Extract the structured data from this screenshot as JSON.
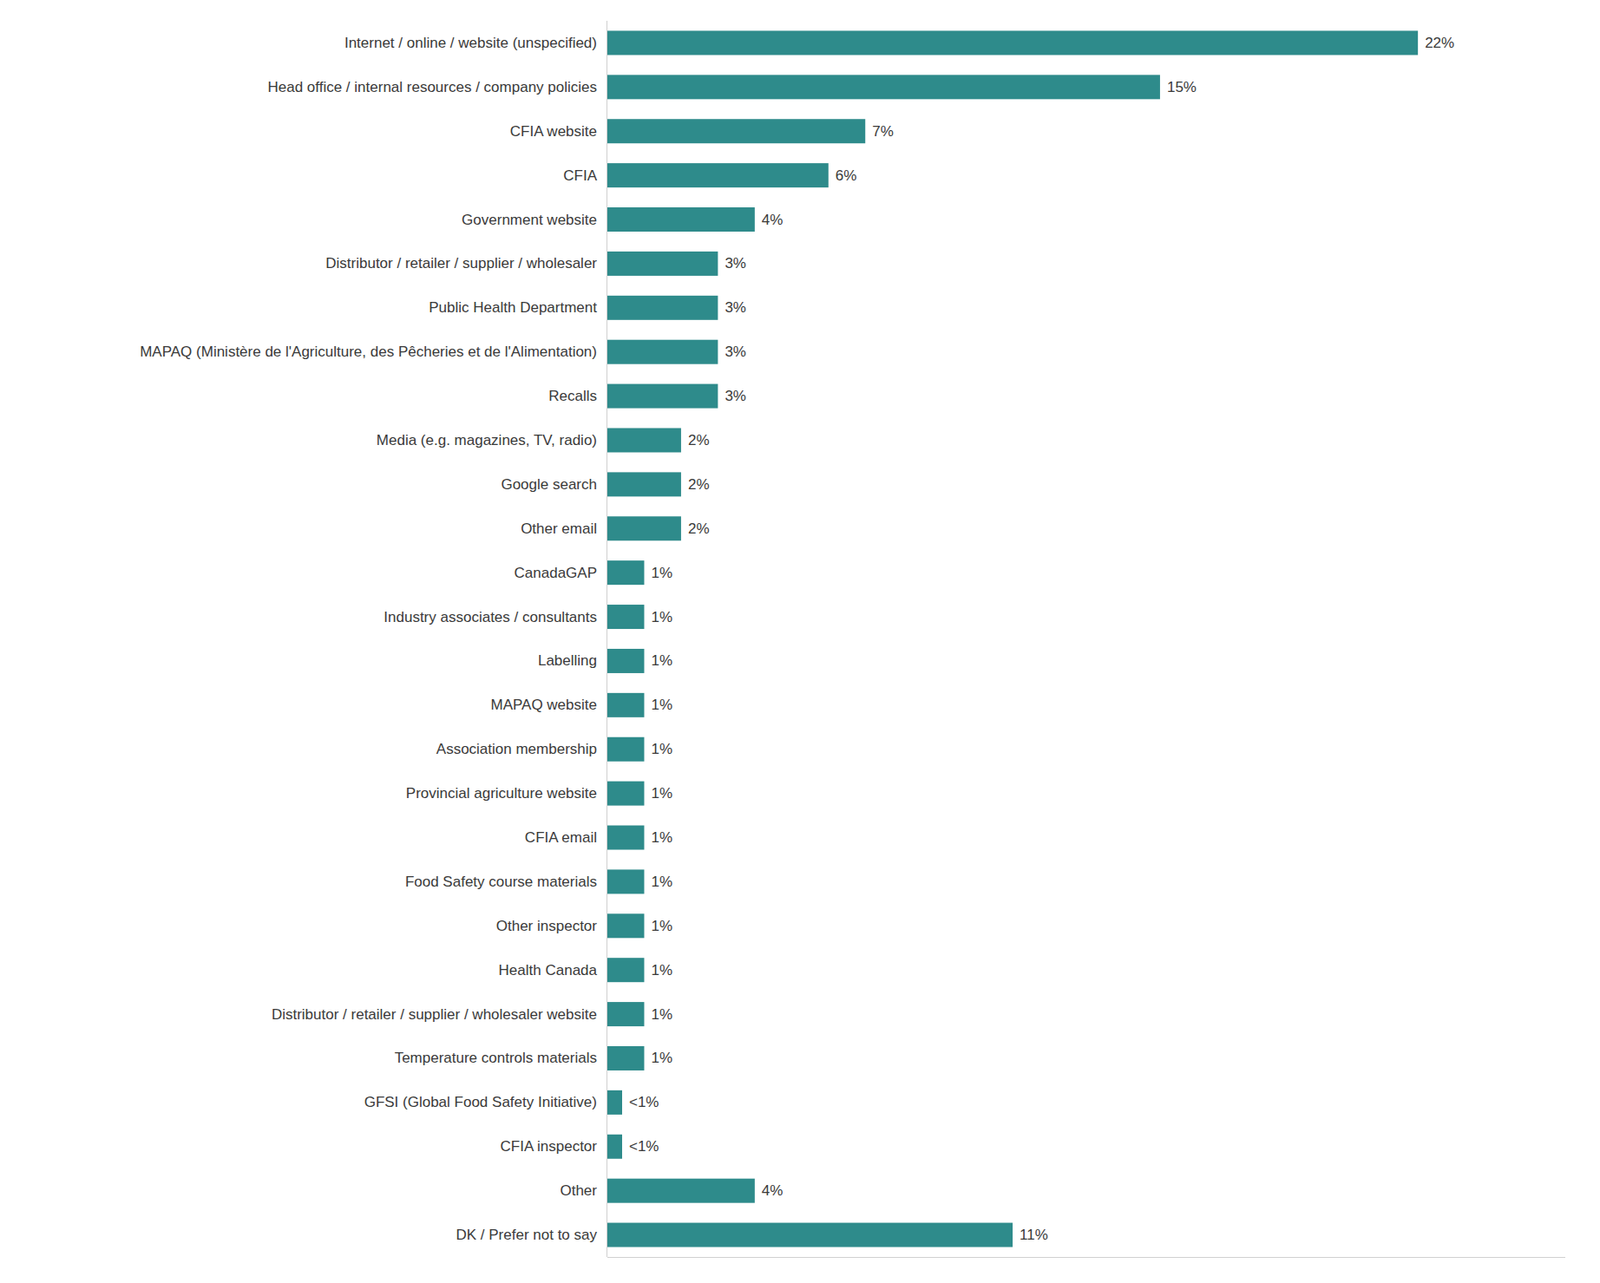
{
  "chart_data": {
    "type": "bar",
    "orientation": "horizontal",
    "categories": [
      "Internet / online / website (unspecified)",
      "Head office / internal resources / company policies",
      "CFIA website",
      "CFIA",
      "Government website",
      "Distributor / retailer / supplier / wholesaler",
      "Public Health Department",
      "MAPAQ (Ministère de l'Agriculture, des Pêcheries et de l'Alimentation)",
      "Recalls",
      "Media (e.g. magazines, TV, radio)",
      "Google search",
      "Other email",
      "CanadaGAP",
      "Industry associates / consultants",
      "Labelling",
      "MAPAQ website",
      "Association membership",
      "Provincial agriculture website",
      "CFIA email",
      "Food Safety course materials",
      "Other inspector",
      "Health Canada",
      "Distributor / retailer / supplier / wholesaler website",
      "Temperature controls materials",
      "GFSI (Global Food Safety Initiative)",
      "CFIA inspector",
      "Other",
      "DK / Prefer not to say"
    ],
    "values": [
      22,
      15,
      7,
      6,
      4,
      3,
      3,
      3,
      3,
      2,
      2,
      2,
      1,
      1,
      1,
      1,
      1,
      1,
      1,
      1,
      1,
      1,
      1,
      1,
      0.4,
      0.4,
      4,
      11
    ],
    "value_labels": [
      "22%",
      "15%",
      "7%",
      "6%",
      "4%",
      "3%",
      "3%",
      "3%",
      "3%",
      "2%",
      "2%",
      "2%",
      "1%",
      "1%",
      "1%",
      "1%",
      "1%",
      "1%",
      "1%",
      "1%",
      "1%",
      "1%",
      "1%",
      "1%",
      "<1%",
      "<1%",
      "4%",
      "11%"
    ],
    "color": "#2e8b8b",
    "xlim": [
      0,
      26
    ],
    "grid": false,
    "data_labels": true,
    "tick_labels": "y"
  }
}
